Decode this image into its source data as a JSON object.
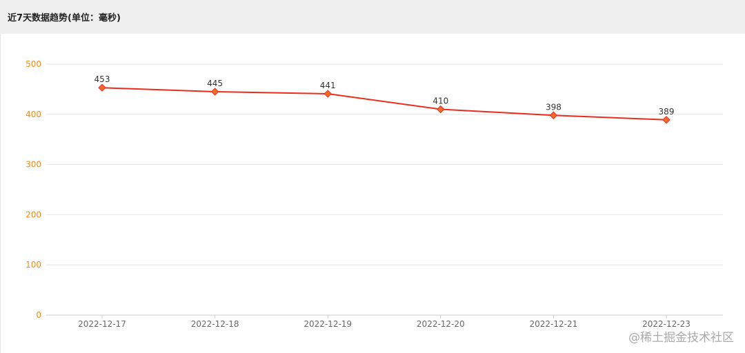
{
  "header": {
    "title": "近7天数据趋势(单位：毫秒)"
  },
  "watermark": {
    "text": "@稀土掘金技术社区"
  },
  "colors": {
    "line": "#ee2a1c",
    "marker": "#f26a2b",
    "y_tick_labels": "#f08a1a",
    "grid": "#e5e5e5",
    "x_tick_labels": "#666666"
  },
  "chart_data": {
    "type": "line",
    "categories": [
      "2022-12-17",
      "2022-12-18",
      "2022-12-19",
      "2022-12-20",
      "2022-12-21",
      "2022-12-23"
    ],
    "series": [
      {
        "values": [
          453,
          445,
          441,
          410,
          398,
          389
        ],
        "marker": "diamond"
      }
    ],
    "data_labels": [
      "453",
      "445",
      "441",
      "410",
      "398",
      "389"
    ],
    "ylim": [
      0,
      500
    ],
    "yticks": [
      0,
      100,
      200,
      300,
      400,
      500
    ],
    "ytick_labels": [
      "0",
      "100",
      "200",
      "300",
      "400",
      "500"
    ],
    "grid": true,
    "legend": "none"
  }
}
